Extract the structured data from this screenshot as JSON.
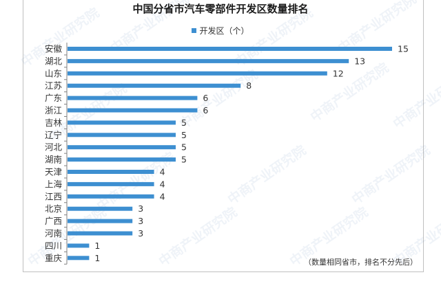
{
  "chart_data": {
    "type": "bar",
    "orientation": "horizontal",
    "title": "中国分省市汽车零部件开发区数量排名",
    "legend_position": "top-center",
    "grid": false,
    "xlim": [
      0,
      16
    ],
    "categories": [
      "安徽",
      "湖北",
      "山东",
      "江苏",
      "广东",
      "浙江",
      "吉林",
      "辽宁",
      "河北",
      "湖南",
      "天津",
      "上海",
      "江西",
      "北京",
      "广西",
      "河南",
      "四川",
      "重庆"
    ],
    "series": [
      {
        "name": "开发区（个）",
        "values": [
          15,
          13,
          12,
          8,
          6,
          6,
          5,
          5,
          5,
          5,
          4,
          4,
          4,
          3,
          3,
          3,
          1,
          1
        ]
      }
    ],
    "note": "（数量相同省市，排名不分先后）"
  },
  "colors": {
    "bar": "#3d8fd1",
    "axis": "#7f7f7f",
    "text": "#333333"
  },
  "watermark": {
    "text": "中商产业研究院"
  }
}
